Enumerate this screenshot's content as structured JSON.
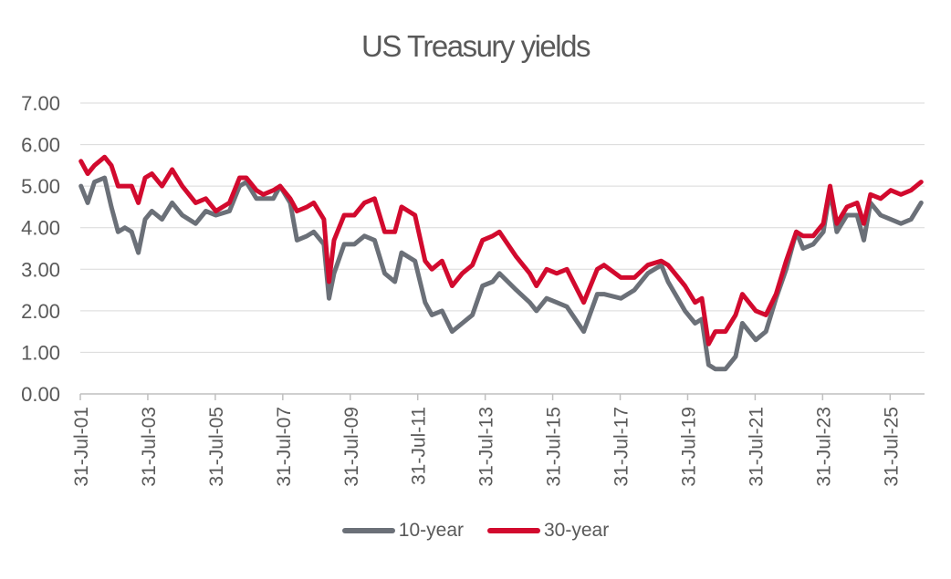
{
  "chart_data": {
    "type": "line",
    "title": "US Treasury yields",
    "xlabel": "",
    "ylabel": "",
    "ylim": [
      0,
      7
    ],
    "yticks": [
      "0.00",
      "1.00",
      "2.00",
      "3.00",
      "4.00",
      "5.00",
      "6.00",
      "7.00"
    ],
    "xticks": [
      "31-Jul-01",
      "31-Jul-03",
      "31-Jul-05",
      "31-Jul-07",
      "31-Jul-09",
      "31-Jul-11",
      "31-Jul-13",
      "31-Jul-15",
      "31-Jul-17",
      "31-Jul-19",
      "31-Jul-21",
      "31-Jul-23",
      "31-Jul-25"
    ],
    "xrange": [
      2001.58,
      2026.6
    ],
    "grid": true,
    "legend_position": "bottom",
    "x": [
      2001.6,
      2001.8,
      2002.0,
      2002.3,
      2002.5,
      2002.7,
      2002.9,
      2003.1,
      2003.3,
      2003.5,
      2003.7,
      2004.0,
      2004.3,
      2004.6,
      2005.0,
      2005.3,
      2005.6,
      2006.0,
      2006.3,
      2006.5,
      2006.8,
      2007.0,
      2007.3,
      2007.5,
      2007.8,
      2008.0,
      2008.3,
      2008.5,
      2008.8,
      2008.95,
      2009.1,
      2009.4,
      2009.7,
      2010.0,
      2010.3,
      2010.6,
      2010.9,
      2011.1,
      2011.5,
      2011.8,
      2012.0,
      2012.3,
      2012.6,
      2012.9,
      2013.2,
      2013.5,
      2013.8,
      2014.0,
      2014.5,
      2014.9,
      2015.1,
      2015.4,
      2015.7,
      2016.0,
      2016.5,
      2016.9,
      2017.1,
      2017.6,
      2018.0,
      2018.4,
      2018.8,
      2019.0,
      2019.5,
      2019.8,
      2020.0,
      2020.2,
      2020.4,
      2020.7,
      2021.0,
      2021.2,
      2021.6,
      2021.9,
      2022.2,
      2022.5,
      2022.8,
      2023.0,
      2023.3,
      2023.6,
      2023.8,
      2024.0,
      2024.3,
      2024.6,
      2024.8,
      2025.0,
      2025.3,
      2025.6,
      2025.9,
      2026.2,
      2026.5
    ],
    "series": [
      {
        "name": "10-year",
        "color": "#6b7078",
        "values": [
          5.0,
          4.6,
          5.1,
          5.2,
          4.5,
          3.9,
          4.0,
          3.9,
          3.4,
          4.2,
          4.4,
          4.2,
          4.6,
          4.3,
          4.1,
          4.4,
          4.3,
          4.4,
          5.0,
          5.1,
          4.7,
          4.7,
          4.7,
          5.0,
          4.6,
          3.7,
          3.8,
          3.9,
          3.6,
          2.3,
          2.9,
          3.6,
          3.6,
          3.8,
          3.7,
          2.9,
          2.7,
          3.4,
          3.2,
          2.2,
          1.9,
          2.0,
          1.5,
          1.7,
          1.9,
          2.6,
          2.7,
          2.9,
          2.5,
          2.2,
          2.0,
          2.3,
          2.2,
          2.1,
          1.5,
          2.4,
          2.4,
          2.3,
          2.5,
          2.9,
          3.1,
          2.7,
          2.0,
          1.7,
          1.8,
          0.7,
          0.6,
          0.6,
          0.9,
          1.7,
          1.3,
          1.5,
          2.3,
          3.0,
          3.9,
          3.5,
          3.6,
          3.9,
          4.9,
          3.9,
          4.3,
          4.3,
          3.7,
          4.6,
          4.3,
          4.2,
          4.1,
          4.2,
          4.6
        ]
      },
      {
        "name": "30-year",
        "color": "#d20a2e",
        "values": [
          5.6,
          5.3,
          5.5,
          5.7,
          5.5,
          5.0,
          5.0,
          5.0,
          4.6,
          5.2,
          5.3,
          5.0,
          5.4,
          5.0,
          4.6,
          4.7,
          4.4,
          4.6,
          5.2,
          5.2,
          4.9,
          4.8,
          4.9,
          5.0,
          4.7,
          4.4,
          4.5,
          4.6,
          4.2,
          2.7,
          3.7,
          4.3,
          4.3,
          4.6,
          4.7,
          3.9,
          3.9,
          4.5,
          4.3,
          3.2,
          3.0,
          3.2,
          2.6,
          2.9,
          3.1,
          3.7,
          3.8,
          3.9,
          3.3,
          2.9,
          2.6,
          3.0,
          2.9,
          3.0,
          2.2,
          3.0,
          3.1,
          2.8,
          2.8,
          3.1,
          3.2,
          3.1,
          2.6,
          2.2,
          2.3,
          1.2,
          1.5,
          1.5,
          1.9,
          2.4,
          2.0,
          1.9,
          2.4,
          3.2,
          3.9,
          3.8,
          3.8,
          4.1,
          5.0,
          4.1,
          4.5,
          4.6,
          4.1,
          4.8,
          4.7,
          4.9,
          4.8,
          4.9,
          5.1
        ]
      }
    ]
  }
}
